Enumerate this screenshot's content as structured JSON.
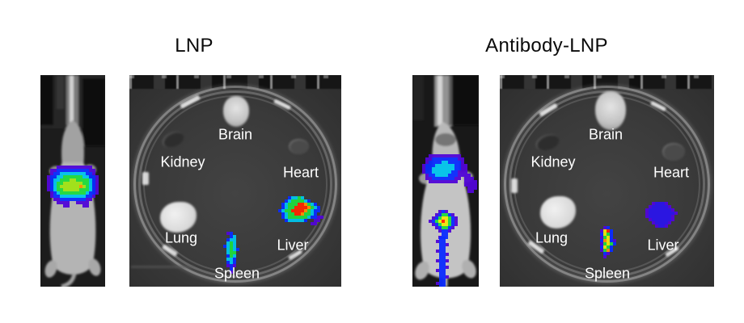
{
  "groups": {
    "lnp": {
      "title": "LNP"
    },
    "antibody_lnp": {
      "title": "Antibody-LNP"
    }
  },
  "organ_labels": {
    "brain": "Brain",
    "kidney": "Kidney",
    "heart": "Heart",
    "lung": "Lung",
    "liver": "Liver",
    "spleen": "Spleen"
  },
  "colors": {
    "page_bg": "#ffffff",
    "title_text": "#0a0a0a",
    "organ_label_text": "#ffffff",
    "dish_background": "#3a3a3a",
    "mouse_panel_background": "#1b1b1b"
  },
  "heat_palette": {
    "P": "#5206d8",
    "B": "#0a2cff",
    "D": "#2b14ea",
    "C": "#00c4ec",
    "G": "#1fdc3e",
    "L": "#a0e414",
    "Y": "#f2e60a",
    "O": "#ff9000",
    "R": "#ff2600"
  },
  "blobs": {
    "lnp_mouse_liver": {
      "cell": 4,
      "rows": [
        "...PPPPPPPPPPP....",
        ".PPBBBBBBBBBBPP...",
        ".PBBCCCCCCCCBBP...",
        "PBBCCGGGGGGCCBBP..",
        "PBCCGGGLLGGGGCBP..",
        "PBCGGLLLLLLGGCBP..",
        "PBCGLLLLLLOLGCBP..",
        "PBCGGLLLLLGGGCBP..",
        ".PBCGGGGGGGGCBBP..",
        ".PBBCCCCCCCCBBP...",
        "..PPBBBBBBBBPP....",
        "...PPPP..PPPP.....",
        ".....PP....PP....."
      ]
    },
    "lnp_dish_liver": {
      "cell": 4,
      "rows": [
        "...BCCGC......",
        "..BCGGGGCB....",
        ".BCGGGRROGCB..",
        ".BCGGRRRROGCB.",
        "BCGGRRRROGCBB.",
        ".BCGGRROGGCB..",
        ".BCGGGGGGCBBPP",
        "..BCCCCCB..PP.",
        "..........PP.."
      ]
    },
    "lnp_dish_spleen": {
      "cell": 4,
      "rows": [
        ".PB..",
        "..BC.",
        ".BCC.",
        ".CGC.",
        "BCGC.",
        ".CGCB",
        ".CGG.",
        ".BGC.",
        ".CCB.",
        ".BCB.",
        ".PBP.",
        "..B..",
        "..P..",
        "....."
      ]
    },
    "ab_mouse_upper": {
      "cell": 4,
      "rows": [
        "..PPPPPPPPPP.....",
        ".PPBBBBBBBBPP....",
        ".PBBBBCCBBBBP....",
        "PBBBCCCCCCBBPP...",
        "PBBCCCCCCCBBPP...",
        "PBBCCCCCCBBPPP...",
        ".PBBCCCCBBBPPPP..",
        ".PPBBBBBBBPP.PPP.",
        "..PPPPPPPPP..PPPP",
        ".............PPPP",
        "..............PPP",
        "..............PP.",
        "................."
      ]
    },
    "ab_mouse_lower": {
      "cell": 4,
      "rows": [
        "...PBP....",
        "..PBGGBP..",
        ".PBGYYGBP.",
        "PBGYRYGBP.",
        ".PBGYYGBP.",
        "..PBGGBP..",
        "...PBBP...",
        "....BB....",
        "...PBB...."
      ]
    },
    "ab_mouse_tail": {
      "cell": 4,
      "rows": [
        ".BB.",
        "PBB.",
        ".BBP",
        ".BB.",
        "PBB.",
        ".BBP",
        ".BB.",
        "PBBP",
        ".BB.",
        ".BBP",
        "PBB.",
        ".BB.",
        ".BBP",
        ".BB.",
        "PBB.",
        ".BB."
      ]
    },
    "ab_dish_liver": {
      "cell": 4,
      "rows": [
        "..PDDDP...",
        ".PDDDDDP..",
        "PDDDDDDDP.",
        "PDDDDDDDDP",
        "PDDDDDDDP.",
        ".PDDDDDDP.",
        "..PDDDDP..",
        "...PDDP..."
      ]
    },
    "ab_dish_spleen": {
      "cell": 4,
      "rows": [
        "..PB..",
        ".PYRB.",
        ".BYGB.",
        ".PGYB.",
        ".BOYBP",
        ".PGYGB",
        ".BYGB.",
        ".PGOB.",
        "..BP..",
        "..P...",
        "......"
      ]
    }
  }
}
